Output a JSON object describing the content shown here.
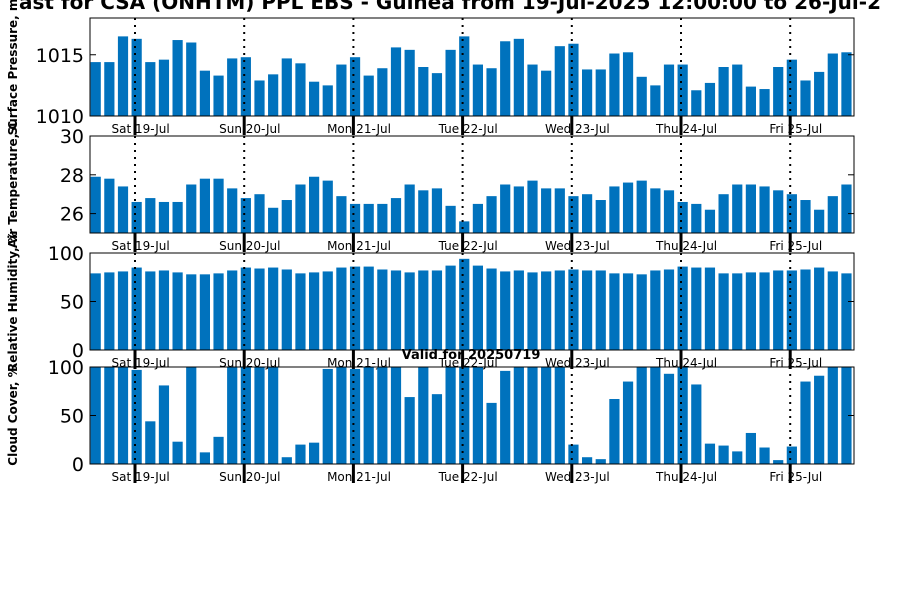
{
  "title": "ast for CSA (ONHTM) PPL EBS - Guinea from 19-Jul-2025 12:00:00 to 26-Jul-2",
  "annotation": "Valid for 20250719",
  "colors": {
    "bar": "#0072bd",
    "axis": "#000000"
  },
  "chart_data": [
    {
      "type": "bar",
      "ylabel": "Surface Pressure, m",
      "ylim": [
        1010,
        1018
      ],
      "yticks": [
        1010,
        1015
      ],
      "day_labels": [
        "Sat 19-Jul",
        "Sun 20-Jul",
        "Mon 21-Jul",
        "Tue 22-Jul",
        "Wed 23-Jul",
        "Thu 24-Jul",
        "Fri 25-Jul"
      ],
      "values": [
        1014.4,
        1014.4,
        1016.5,
        1016.3,
        1014.4,
        1014.6,
        1016.2,
        1016.0,
        1013.7,
        1013.3,
        1014.7,
        1014.8,
        1012.9,
        1013.4,
        1014.7,
        1014.3,
        1012.8,
        1012.5,
        1014.2,
        1014.8,
        1013.3,
        1013.9,
        1015.6,
        1015.4,
        1014.0,
        1013.5,
        1015.4,
        1016.5,
        1014.2,
        1013.9,
        1016.1,
        1016.3,
        1014.2,
        1013.7,
        1015.7,
        1015.9,
        1013.8,
        1013.8,
        1015.1,
        1015.2,
        1013.2,
        1012.5,
        1014.2,
        1014.2,
        1012.1,
        1012.7,
        1014.0,
        1014.2,
        1012.4,
        1012.2,
        1014.0,
        1014.6,
        1012.9,
        1013.6,
        1015.1,
        1015.2
      ]
    },
    {
      "type": "bar",
      "ylabel": "Air Temperature, C",
      "ylim": [
        25,
        30
      ],
      "yticks": [
        26,
        28,
        30
      ],
      "day_labels": [
        "Sat 19-Jul",
        "Sun 20-Jul",
        "Mon 21-Jul",
        "Tue 22-Jul",
        "Wed 23-Jul",
        "Thu 24-Jul",
        "Fri 25-Jul"
      ],
      "values": [
        27.9,
        27.8,
        27.4,
        26.6,
        26.8,
        26.6,
        26.6,
        27.5,
        27.8,
        27.8,
        27.3,
        26.8,
        27.0,
        26.3,
        26.7,
        27.5,
        27.9,
        27.7,
        26.9,
        26.5,
        26.5,
        26.5,
        26.8,
        27.5,
        27.2,
        27.3,
        26.4,
        25.6,
        26.5,
        26.9,
        27.5,
        27.4,
        27.7,
        27.3,
        27.3,
        26.9,
        27.0,
        26.7,
        27.4,
        27.6,
        27.7,
        27.3,
        27.2,
        26.6,
        26.5,
        26.2,
        27.0,
        27.5,
        27.5,
        27.4,
        27.2,
        27.0,
        26.7,
        26.2,
        26.9,
        27.5
      ]
    },
    {
      "type": "bar",
      "ylabel": "Relative Humidity, %",
      "ylim": [
        0,
        100
      ],
      "yticks": [
        0,
        50,
        100
      ],
      "day_labels": [
        "Sat 19-Jul",
        "Sun 20-Jul",
        "Mon 21-Jul",
        "Tue 22-Jul",
        "Wed 23-Jul",
        "Thu 24-Jul",
        "Fri 25-Jul"
      ],
      "values": [
        79,
        80,
        81,
        85,
        81,
        82,
        80,
        78,
        78,
        79,
        82,
        85,
        84,
        85,
        83,
        79,
        80,
        81,
        85,
        86,
        86,
        83,
        82,
        80,
        82,
        82,
        87,
        94,
        87,
        84,
        81,
        82,
        80,
        81,
        82,
        83,
        82,
        82,
        79,
        79,
        78,
        82,
        83,
        86,
        85,
        85,
        79,
        79,
        80,
        80,
        82,
        82,
        83,
        85,
        81,
        79
      ]
    },
    {
      "type": "bar",
      "ylabel": "Cloud Cover, %",
      "ylim": [
        0,
        100
      ],
      "yticks": [
        0,
        50,
        100
      ],
      "day_labels": [
        "Sat 19-Jul",
        "Sun 20-Jul",
        "Mon 21-Jul",
        "Tue 22-Jul",
        "Wed 23-Jul",
        "Thu 24-Jul",
        "Fri 25-Jul"
      ],
      "values": [
        100,
        100,
        100,
        97,
        44,
        81,
        23,
        100,
        12,
        28,
        100,
        100,
        100,
        100,
        7,
        20,
        22,
        98,
        100,
        98,
        100,
        100,
        100,
        69,
        100,
        72,
        100,
        100,
        100,
        63,
        96,
        100,
        100,
        100,
        100,
        20,
        7,
        5,
        67,
        85,
        100,
        100,
        93,
        100,
        82,
        21,
        19,
        13,
        32,
        17,
        4,
        18,
        85,
        91,
        100,
        100
      ]
    }
  ]
}
